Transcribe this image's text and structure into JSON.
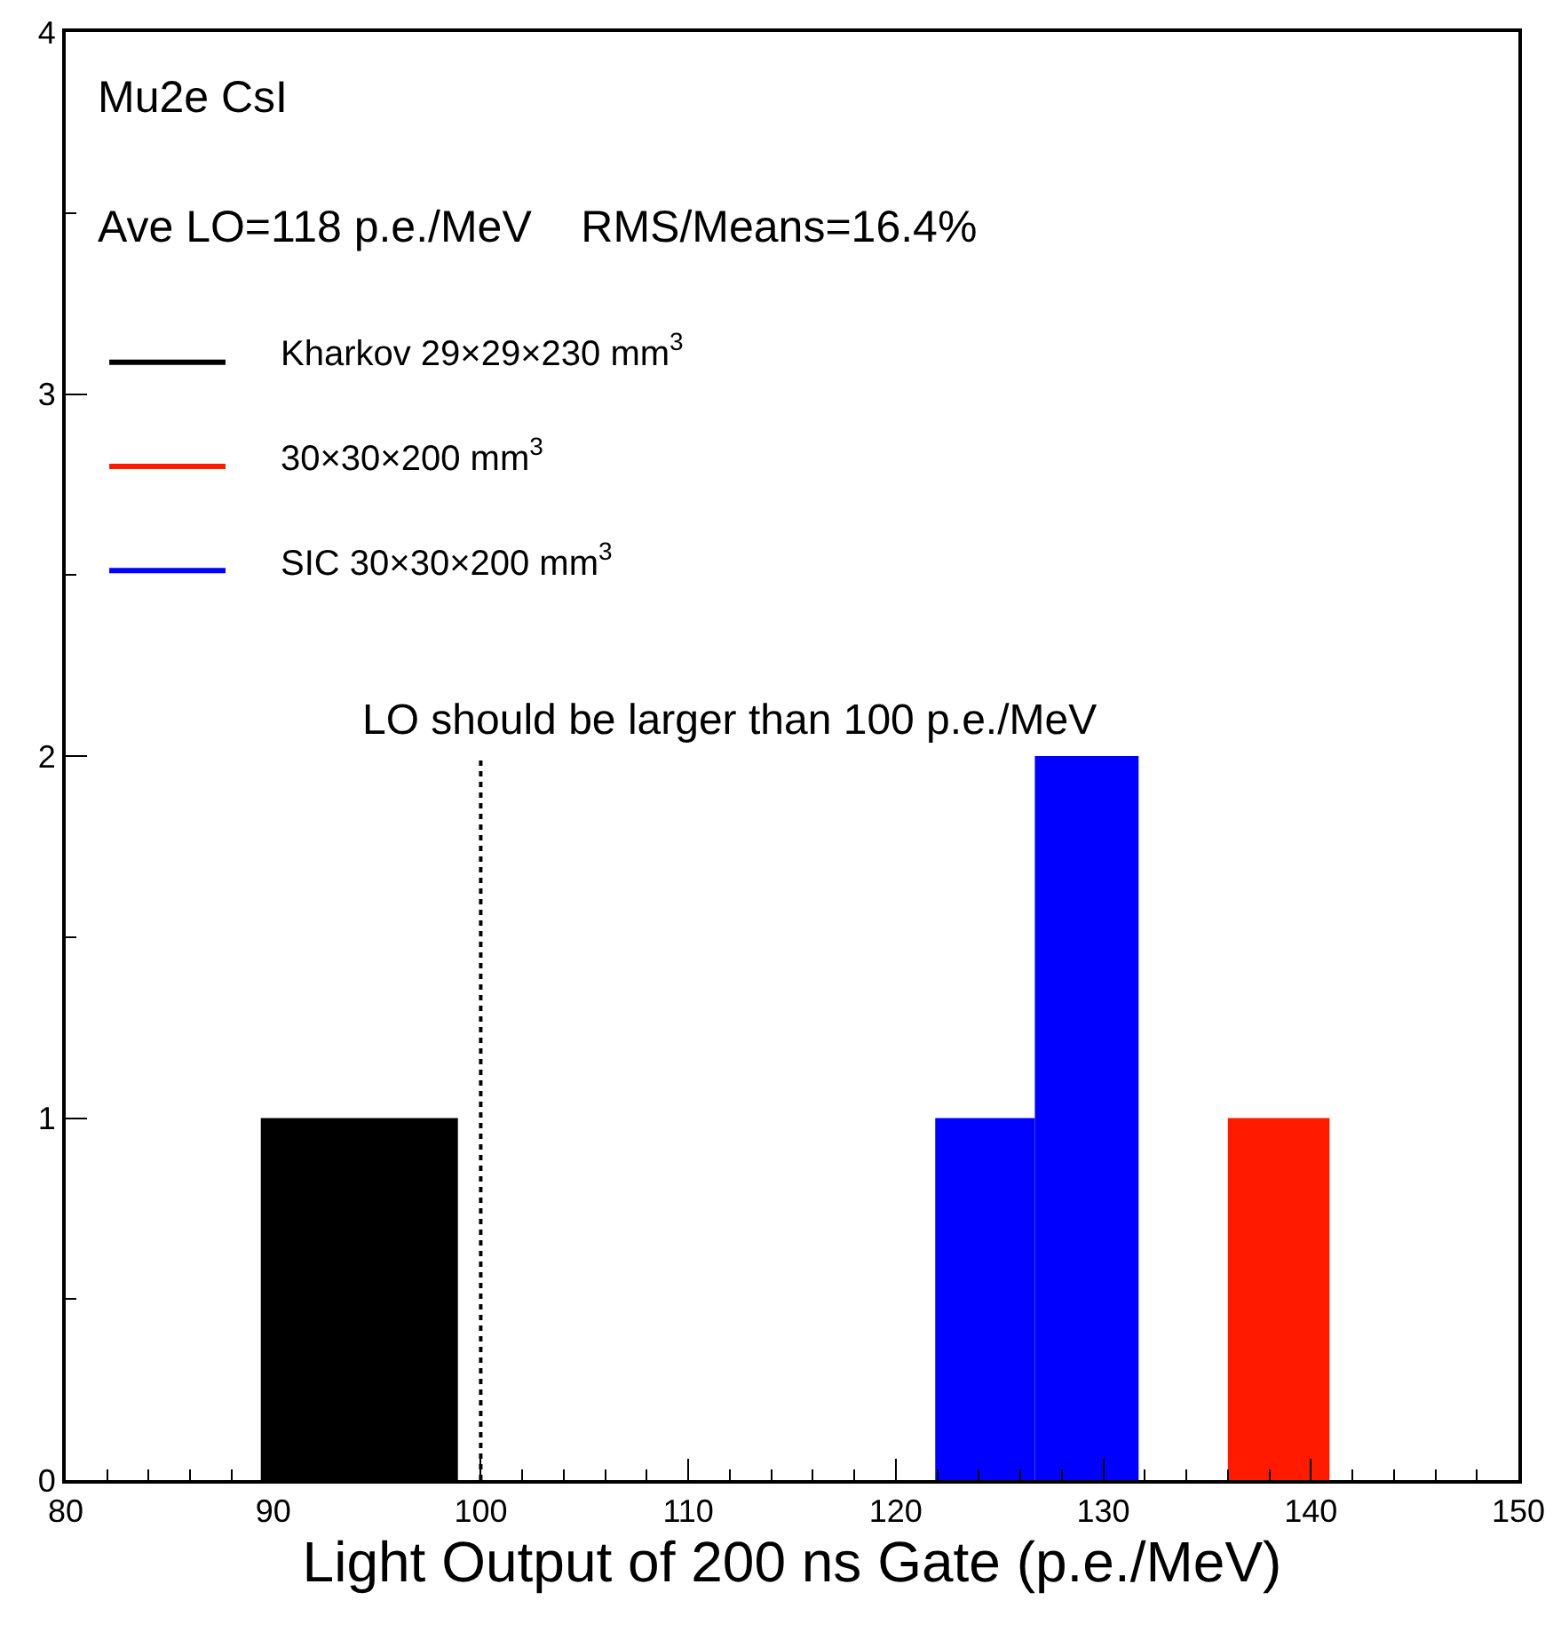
{
  "chart_data": {
    "type": "histogram",
    "xlabel": "Light Output of 200 ns Gate (p.e./MeV)",
    "annotations": [
      "Mu2e CsI",
      "Ave LO=118 p.e./MeV    RMS/Means=16.4%"
    ],
    "bins": [
      89.4,
      98.9,
      121.9,
      126.7,
      131.7,
      136.0,
      140.9
    ],
    "series": [
      {
        "name": "Kharkov 29×29×230 mm$^{3}$",
        "color": "#000000",
        "values": [
          1,
          null,
          null,
          null,
          null,
          null
        ]
      },
      {
        "name": "30×30×200 mm$^{3}$",
        "color": "#ff1a00",
        "values": [
          null,
          null,
          null,
          null,
          null,
          1
        ]
      },
      {
        "name": "SIC 30×30×200 mm$^{3}$",
        "color": "#0000ff",
        "values": [
          null,
          null,
          1,
          2,
          null,
          null
        ]
      }
    ],
    "ref_lines": [
      {
        "axis": "x",
        "value": 100,
        "label": "LO should be larger than 100 p.e./MeV",
        "color": "#000000",
        "line_style": "dotted"
      }
    ],
    "xlim": [
      80,
      150
    ],
    "xticks": [
      80,
      90,
      100,
      110,
      120,
      130,
      140,
      150
    ],
    "ylim": [
      0,
      4
    ],
    "yticks": [
      0,
      1,
      2,
      3,
      4
    ],
    "legend": "top left"
  }
}
